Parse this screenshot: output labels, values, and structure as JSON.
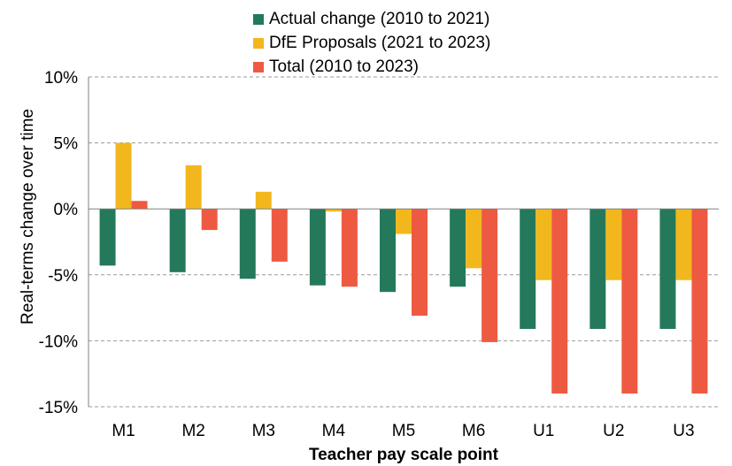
{
  "chart_data": {
    "type": "bar",
    "xlabel": "Teacher pay scale point",
    "ylabel": "Real-terms change over time",
    "categories": [
      "M1",
      "M2",
      "M3",
      "M4",
      "M5",
      "M6",
      "U1",
      "U2",
      "U3"
    ],
    "series": [
      {
        "name": "Actual change (2010 to 2021)",
        "color": "#24795a",
        "values": [
          -4.3,
          -4.8,
          -5.3,
          -5.8,
          -6.3,
          -5.9,
          -9.1,
          -9.1,
          -9.1
        ]
      },
      {
        "name": "DfE Proposals (2021 to 2023)",
        "color": "#f2b71d",
        "values": [
          5.0,
          3.3,
          1.3,
          -0.2,
          -1.9,
          -4.5,
          -5.4,
          -5.4,
          -5.4
        ]
      },
      {
        "name": "Total (2010 to 2023)",
        "color": "#ee5a41",
        "values": [
          0.6,
          -1.6,
          -4.0,
          -5.9,
          -8.1,
          -10.1,
          -14.0,
          -14.0,
          -14.0
        ]
      }
    ],
    "yticks": [
      10,
      5,
      0,
      -5,
      -10,
      -15
    ],
    "ytick_labels": [
      "10%",
      "5%",
      "0%",
      "-5%",
      "-10%",
      "-15%"
    ],
    "ylim": [
      -15,
      10
    ],
    "grid": true,
    "legend_position": "top-center"
  }
}
